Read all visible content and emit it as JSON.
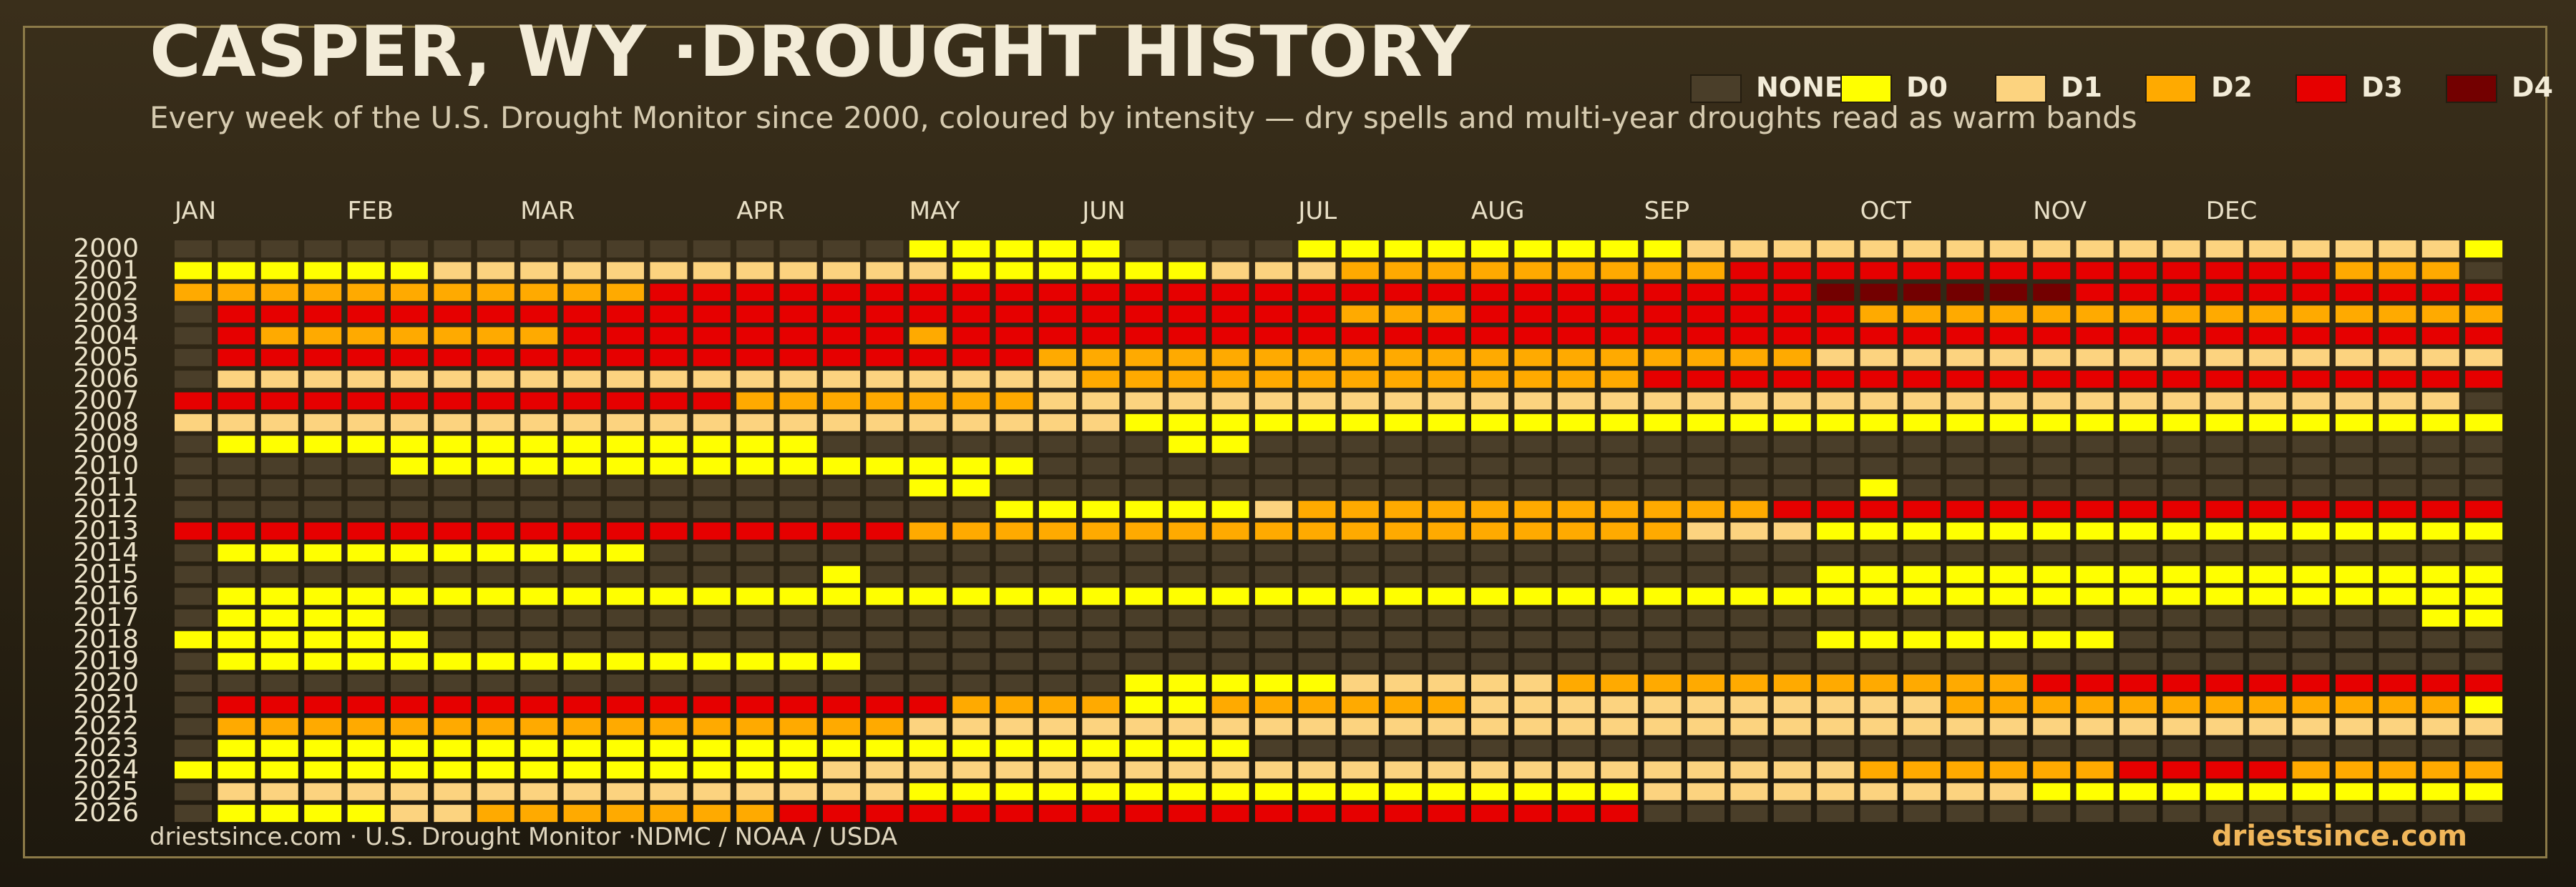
{
  "header": {
    "title": "CASPER, WY ·DROUGHT HISTORY",
    "subtitle": "Every week of the U.S. Drought Monitor since 2000, coloured by intensity — dry spells and multi-year droughts read as warm bands"
  },
  "legend": [
    {
      "label": "NONE",
      "color": "#4a3e29"
    },
    {
      "label": "D0",
      "color": "#ffff00"
    },
    {
      "label": "D1",
      "color": "#fcd37f"
    },
    {
      "label": "D2",
      "color": "#ffaa00"
    },
    {
      "label": "D3",
      "color": "#e60000"
    },
    {
      "label": "D4",
      "color": "#730000"
    }
  ],
  "footer": {
    "source": "driestsince.com  · U.S. Drought Monitor ·NDMC / NOAA / USDA",
    "brand": "driestsince.com"
  },
  "chart_data": {
    "type": "heatmap",
    "x_unit": "week of year",
    "weeks_per_year": 54,
    "month_labels": [
      {
        "label": "JAN",
        "week": 1
      },
      {
        "label": "FEB",
        "week": 5
      },
      {
        "label": "MAR",
        "week": 9
      },
      {
        "label": "APR",
        "week": 14
      },
      {
        "label": "MAY",
        "week": 18
      },
      {
        "label": "JUN",
        "week": 22
      },
      {
        "label": "JUL",
        "week": 27
      },
      {
        "label": "AUG",
        "week": 31
      },
      {
        "label": "SEP",
        "week": 35
      },
      {
        "label": "OCT",
        "week": 40
      },
      {
        "label": "NOV",
        "week": 44
      },
      {
        "label": "DEC",
        "week": 48
      }
    ],
    "years": [
      "2000",
      "2001",
      "2002",
      "2003",
      "2004",
      "2005",
      "2006",
      "2007",
      "2008",
      "2009",
      "2010",
      "2011",
      "2012",
      "2013",
      "2014",
      "2015",
      "2016",
      "2017",
      "2018",
      "2019",
      "2020",
      "2021",
      "2022",
      "2023",
      "2024",
      "2025",
      "2026"
    ],
    "level_code": "0 = None, 1 = D0, 2 = D1, 3 = D2, 4 = D3, 5 = D4",
    "runs": [
      [
        [
          0,
          17
        ],
        [
          1,
          5
        ],
        [
          0,
          4
        ],
        [
          1,
          9
        ],
        [
          2,
          18
        ],
        [
          1,
          1
        ]
      ],
      [
        [
          0,
          0
        ],
        [
          1,
          6
        ],
        [
          2,
          12
        ],
        [
          1,
          6
        ],
        [
          2,
          3
        ],
        [
          3,
          9
        ],
        [
          4,
          14
        ],
        [
          3,
          3
        ],
        [
          0,
          1
        ]
      ],
      [
        [
          3,
          11
        ],
        [
          4,
          27
        ],
        [
          5,
          6
        ],
        [
          4,
          10
        ]
      ],
      [
        [
          0,
          1
        ],
        [
          4,
          26
        ],
        [
          3,
          3
        ],
        [
          4,
          9
        ],
        [
          3,
          15
        ]
      ],
      [
        [
          0,
          1
        ],
        [
          4,
          1
        ],
        [
          3,
          7
        ],
        [
          4,
          8
        ],
        [
          3,
          1
        ],
        [
          4,
          37
        ]
      ],
      [
        [
          0,
          1
        ],
        [
          4,
          19
        ],
        [
          3,
          18
        ],
        [
          2,
          16
        ]
      ],
      [
        [
          0,
          1
        ],
        [
          2,
          20
        ],
        [
          3,
          13
        ],
        [
          4,
          20
        ]
      ],
      [
        [
          4,
          13
        ],
        [
          3,
          7
        ],
        [
          2,
          33
        ],
        [
          0,
          1
        ]
      ],
      [
        [
          2,
          22
        ],
        [
          1,
          32
        ]
      ],
      [
        [
          0,
          1
        ],
        [
          1,
          14
        ],
        [
          0,
          8
        ],
        [
          1,
          2
        ],
        [
          0,
          29
        ]
      ],
      [
        [
          0,
          5
        ],
        [
          1,
          15
        ],
        [
          0,
          34
        ]
      ],
      [
        [
          0,
          17
        ],
        [
          1,
          2
        ],
        [
          0,
          20
        ],
        [
          1,
          1
        ],
        [
          0,
          14
        ]
      ],
      [
        [
          0,
          19
        ],
        [
          1,
          6
        ],
        [
          2,
          1
        ],
        [
          3,
          11
        ],
        [
          4,
          17
        ]
      ],
      [
        [
          4,
          17
        ],
        [
          3,
          18
        ],
        [
          2,
          3
        ],
        [
          1,
          16
        ]
      ],
      [
        [
          0,
          1
        ],
        [
          1,
          10
        ],
        [
          0,
          43
        ]
      ],
      [
        [
          0,
          15
        ],
        [
          1,
          1
        ],
        [
          0,
          22
        ],
        [
          1,
          16
        ]
      ],
      [
        [
          0,
          1
        ],
        [
          1,
          53
        ]
      ],
      [
        [
          0,
          1
        ],
        [
          1,
          4
        ],
        [
          0,
          47
        ],
        [
          1,
          2
        ]
      ],
      [
        [
          1,
          6
        ],
        [
          0,
          32
        ],
        [
          1,
          7
        ],
        [
          0,
          9
        ]
      ],
      [
        [
          0,
          1
        ],
        [
          1,
          15
        ],
        [
          0,
          38
        ]
      ],
      [
        [
          0,
          22
        ],
        [
          1,
          5
        ],
        [
          2,
          5
        ],
        [
          3,
          11
        ],
        [
          4,
          11
        ]
      ],
      [
        [
          0,
          1
        ],
        [
          4,
          17
        ],
        [
          3,
          4
        ],
        [
          1,
          2
        ],
        [
          3,
          6
        ],
        [
          2,
          11
        ],
        [
          3,
          12
        ],
        [
          1,
          1
        ]
      ],
      [
        [
          0,
          1
        ],
        [
          3,
          16
        ],
        [
          2,
          37
        ]
      ],
      [
        [
          0,
          1
        ],
        [
          1,
          18
        ],
        [
          1,
          6
        ],
        [
          0,
          29
        ]
      ],
      [
        [
          1,
          15
        ],
        [
          2,
          12
        ],
        [
          2,
          12
        ],
        [
          3,
          6
        ],
        [
          4,
          4
        ],
        [
          3,
          5
        ]
      ],
      [
        [
          0,
          1
        ],
        [
          2,
          16
        ],
        [
          1,
          17
        ],
        [
          2,
          9
        ],
        [
          1,
          11
        ]
      ],
      [
        [
          0,
          1
        ],
        [
          1,
          4
        ],
        [
          2,
          2
        ],
        [
          3,
          7
        ],
        [
          4,
          20
        ],
        [
          0,
          20
        ]
      ]
    ]
  }
}
